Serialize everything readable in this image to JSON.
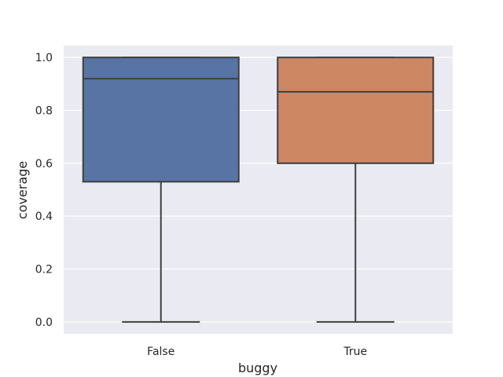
{
  "chart_data": {
    "type": "box",
    "xlabel": "buggy",
    "ylabel": "coverage",
    "ylim": [
      -0.045,
      1.045
    ],
    "yticks": [
      0.0,
      0.2,
      0.4,
      0.6,
      0.8,
      1.0
    ],
    "ytick_labels": [
      "0.0",
      "0.2",
      "0.4",
      "0.6",
      "0.8",
      "1.0"
    ],
    "categories": [
      "False",
      "True"
    ],
    "boxes": [
      {
        "category": "False",
        "whisker_low": 0.0,
        "q1": 0.53,
        "median": 0.92,
        "q3": 1.0,
        "whisker_high": 1.0,
        "color": "#5874a5"
      },
      {
        "category": "True",
        "whisker_low": 0.0,
        "q1": 0.6,
        "median": 0.87,
        "q3": 1.0,
        "whisker_high": 1.0,
        "color": "#cd8763"
      }
    ],
    "grid": true,
    "background": "#eaeaf2",
    "line_color": "#3f3f3f"
  }
}
